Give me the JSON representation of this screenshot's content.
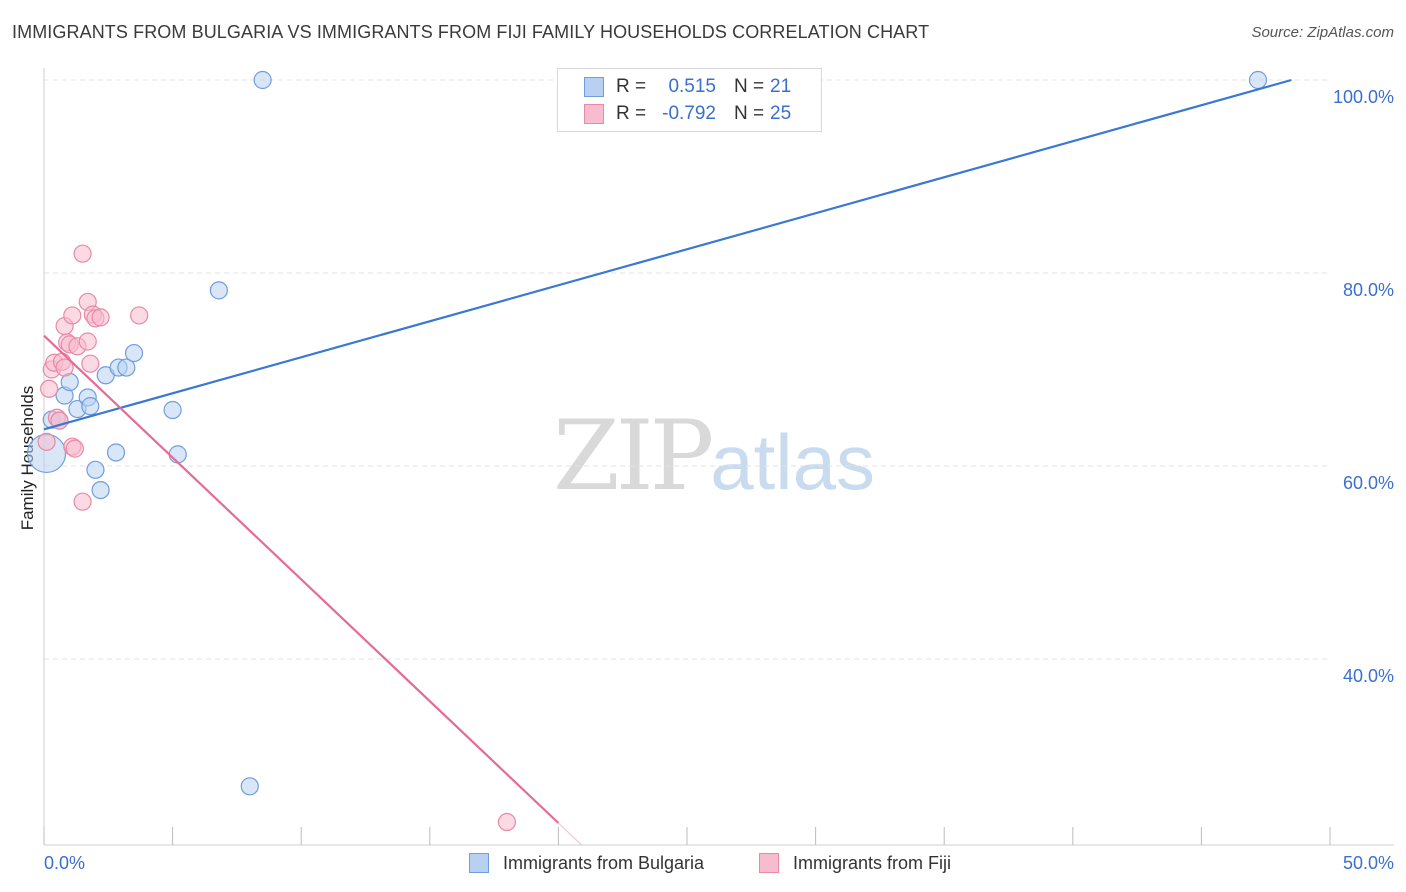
{
  "title": "IMMIGRANTS FROM BULGARIA VS IMMIGRANTS FROM FIJI FAMILY HOUSEHOLDS CORRELATION CHART",
  "source": "Source: ZipAtlas.com",
  "watermark": {
    "zip": "ZIP",
    "atlas": "atlas"
  },
  "legend": {
    "rows": [
      {
        "r_label": "R =",
        "r_value": "0.515",
        "n_label": "N =",
        "n_value": "21"
      },
      {
        "r_label": "R =",
        "r_value": "-0.792",
        "n_label": "N =",
        "n_value": "25"
      }
    ]
  },
  "colors": {
    "bulgaria_fill": "#b8d1f2",
    "bulgaria_stroke": "#6f9edc",
    "bulgaria_line": "#3a78d4",
    "fiji_fill": "#f7bccd",
    "fiji_stroke": "#e88aa7",
    "fiji_line": "#e56b97",
    "tick_text": "#3a6fd0",
    "grid": "#e3e3e3"
  },
  "chart_data": {
    "type": "scatter",
    "title": "IMMIGRANTS FROM BULGARIA VS IMMIGRANTS FROM FIJI FAMILY HOUSEHOLDS CORRELATION CHART",
    "xlabel": "",
    "ylabel": "Family Households",
    "xlim": [
      0,
      50
    ],
    "ylim": [
      22,
      102
    ],
    "x_tick_labels": [
      "0.0%",
      "50.0%"
    ],
    "y_ticks": [
      40,
      60,
      80,
      100
    ],
    "y_tick_labels": [
      "40.0%",
      "60.0%",
      "80.0%",
      "100.0%"
    ],
    "grid": true,
    "legend_position": "top-center",
    "series": [
      {
        "name": "Immigrants from Bulgaria",
        "r": 0.515,
        "n": 21,
        "trend": {
          "x": [
            0,
            48.5
          ],
          "y": [
            63.8,
            100.0
          ]
        },
        "points": [
          {
            "x": 0.1,
            "y": 61.3,
            "big": true
          },
          {
            "x": 0.3,
            "y": 64.8
          },
          {
            "x": 0.6,
            "y": 64.7
          },
          {
            "x": 0.8,
            "y": 67.3
          },
          {
            "x": 1.0,
            "y": 68.7
          },
          {
            "x": 1.3,
            "y": 65.9
          },
          {
            "x": 1.7,
            "y": 67.1
          },
          {
            "x": 1.8,
            "y": 66.2
          },
          {
            "x": 2.0,
            "y": 59.6
          },
          {
            "x": 2.2,
            "y": 57.5
          },
          {
            "x": 2.4,
            "y": 69.4
          },
          {
            "x": 2.8,
            "y": 61.4
          },
          {
            "x": 2.9,
            "y": 70.2
          },
          {
            "x": 3.2,
            "y": 70.2
          },
          {
            "x": 3.5,
            "y": 71.7
          },
          {
            "x": 5.0,
            "y": 65.8
          },
          {
            "x": 5.2,
            "y": 61.2
          },
          {
            "x": 6.8,
            "y": 78.2
          },
          {
            "x": 8.0,
            "y": 26.8
          },
          {
            "x": 8.5,
            "y": 100.0
          },
          {
            "x": 47.2,
            "y": 100.0
          }
        ]
      },
      {
        "name": "Immigrants from Fiji",
        "r": -0.792,
        "n": 25,
        "trend": {
          "x": [
            0,
            20.0
          ],
          "y": [
            73.5,
            23.0
          ]
        },
        "points": [
          {
            "x": 0.1,
            "y": 62.5
          },
          {
            "x": 0.2,
            "y": 68.0
          },
          {
            "x": 0.3,
            "y": 70.0
          },
          {
            "x": 0.4,
            "y": 70.7
          },
          {
            "x": 0.5,
            "y": 65.0
          },
          {
            "x": 0.6,
            "y": 64.7
          },
          {
            "x": 0.7,
            "y": 70.8
          },
          {
            "x": 0.8,
            "y": 70.2
          },
          {
            "x": 0.8,
            "y": 74.5
          },
          {
            "x": 0.9,
            "y": 72.8
          },
          {
            "x": 1.0,
            "y": 72.6
          },
          {
            "x": 1.1,
            "y": 75.6
          },
          {
            "x": 1.1,
            "y": 62.0
          },
          {
            "x": 1.2,
            "y": 61.8
          },
          {
            "x": 1.3,
            "y": 72.4
          },
          {
            "x": 1.5,
            "y": 56.3
          },
          {
            "x": 1.5,
            "y": 82.0
          },
          {
            "x": 1.7,
            "y": 72.9
          },
          {
            "x": 1.7,
            "y": 77.0
          },
          {
            "x": 1.8,
            "y": 70.6
          },
          {
            "x": 1.9,
            "y": 75.7
          },
          {
            "x": 2.0,
            "y": 75.3
          },
          {
            "x": 2.2,
            "y": 75.4
          },
          {
            "x": 3.7,
            "y": 75.6
          },
          {
            "x": 18.0,
            "y": 23.1
          }
        ]
      }
    ]
  }
}
